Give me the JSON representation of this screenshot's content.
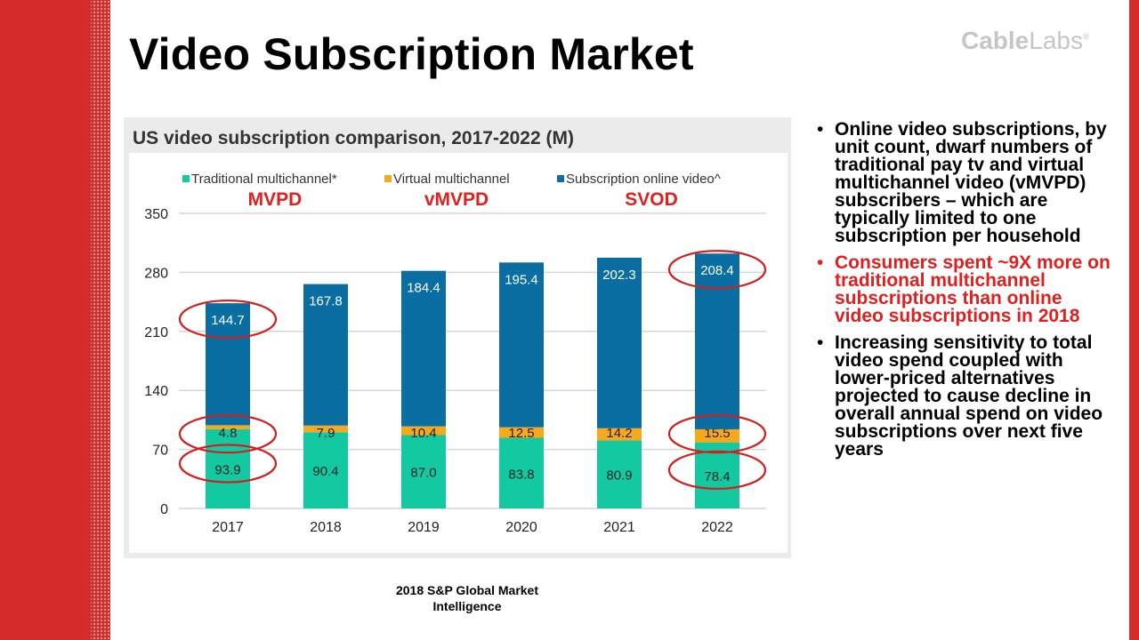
{
  "slide": {
    "title": "Video Subscription Market",
    "logo_bold": "Cable",
    "logo_light": "Labs",
    "logo_mark": "®",
    "source": "2018 S&P Global Market\nIntelligence"
  },
  "bullets": [
    {
      "text": "Online video subscriptions, by unit count, dwarf numbers of traditional pay tv and virtual multichannel video (vMVPD) subscribers – which are typically limited to one subscription per household",
      "color": "#000000"
    },
    {
      "text": "Consumers spent ~9X more on traditional multichannel subscriptions than online video subscriptions in 2018",
      "color": "#e0201f"
    },
    {
      "text": "Increasing sensitivity to total video spend coupled with lower-priced alternatives projected to cause decline in overall annual spend on video subscriptions over next five years",
      "color": "#000000"
    }
  ],
  "annotations": {
    "labels": [
      "MVPD",
      "vMVPD",
      "SVOD"
    ],
    "label_color": "#e0201f",
    "circled": [
      {
        "series": 2,
        "index": 0
      },
      {
        "series": 1,
        "index": 0
      },
      {
        "series": 0,
        "index": 0
      },
      {
        "series": 2,
        "index": 5
      },
      {
        "series": 1,
        "index": 5
      },
      {
        "series": 0,
        "index": 5
      }
    ]
  },
  "chart_data": {
    "type": "bar",
    "stacked": true,
    "title": "US video subscription comparison, 2017-2022 (M)",
    "categories": [
      "2017",
      "2018",
      "2019",
      "2020",
      "2021",
      "2022"
    ],
    "series": [
      {
        "name": "Traditional multichannel*",
        "color": "#12c9a2",
        "values": [
          93.9,
          90.4,
          87.0,
          83.8,
          80.9,
          78.4
        ],
        "labels": [
          "93.9",
          "90.4",
          "87.0",
          "83.8",
          "80.9",
          "78.4"
        ]
      },
      {
        "name": "Virtual multichannel",
        "color": "#f7a81b",
        "values": [
          4.8,
          7.9,
          10.4,
          12.5,
          14.2,
          15.5
        ],
        "labels": [
          "4.8",
          "7.9",
          "10.4",
          "12.5",
          "14.2",
          "15.5"
        ]
      },
      {
        "name": "Subscription online video^",
        "color": "#0a6ea3",
        "values": [
          144.7,
          167.8,
          184.4,
          195.4,
          202.3,
          208.4
        ],
        "labels": [
          "144.7",
          "167.8",
          "184.4",
          "195.4",
          "202.3",
          "208.4"
        ]
      }
    ],
    "ylim": [
      0,
      350
    ],
    "yticks": [
      "0",
      "70",
      "140",
      "210",
      "280",
      "350"
    ],
    "grid": true,
    "legend": "top"
  }
}
